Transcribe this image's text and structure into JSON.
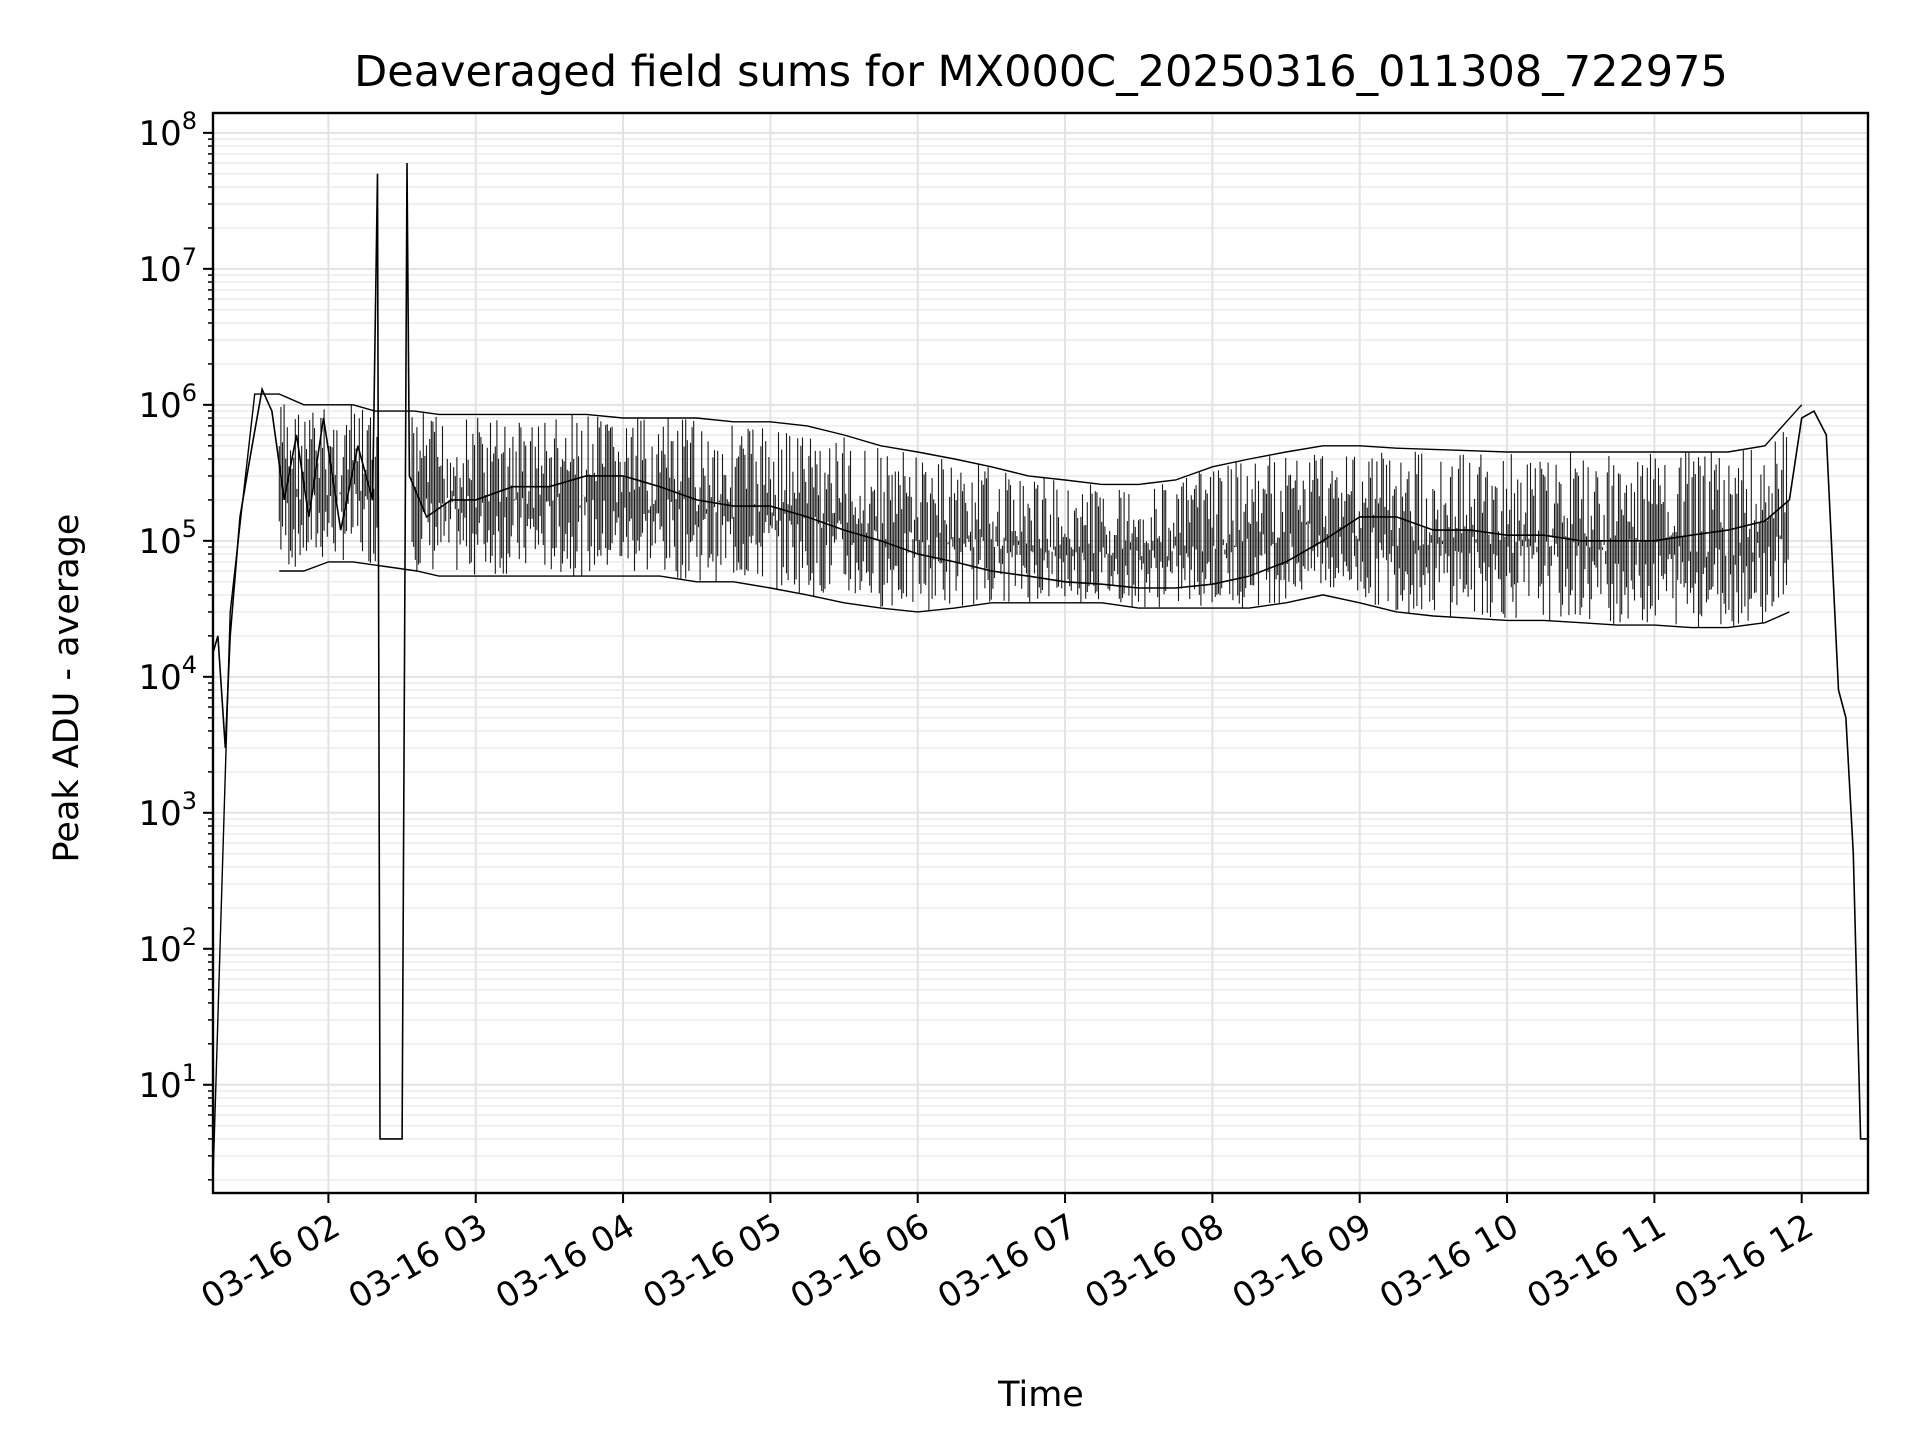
{
  "chart_data": {
    "type": "line",
    "title": "Deaveraged field sums for MX000C_20250316_011308_722975",
    "xlabel": "Time",
    "ylabel": "Peak ADU - average",
    "y_scale": "log",
    "ylim": [
      1.6,
      140000000
    ],
    "xlim": [
      "2025-03-16T01:13",
      "2025-03-16T12:27"
    ],
    "grid": true,
    "line_color": "#000000",
    "x_tick_labels": [
      "03-16 02",
      "03-16 03",
      "03-16 04",
      "03-16 05",
      "03-16 06",
      "03-16 07",
      "03-16 08",
      "03-16 09",
      "03-16 10",
      "03-16 11",
      "03-16 12"
    ],
    "y_tick_labels": [
      {
        "base": "10",
        "exp": "1"
      },
      {
        "base": "10",
        "exp": "2"
      },
      {
        "base": "10",
        "exp": "3"
      },
      {
        "base": "10",
        "exp": "4"
      },
      {
        "base": "10",
        "exp": "5"
      },
      {
        "base": "10",
        "exp": "6"
      },
      {
        "base": "10",
        "exp": "7"
      },
      {
        "base": "10",
        "exp": "8"
      }
    ],
    "series": [
      {
        "x": [
          "2025-03-16T01:13",
          "2025-03-16T01:15",
          "2025-03-16T01:18",
          "2025-03-16T01:20",
          "2025-03-16T01:24",
          "2025-03-16T01:28",
          "2025-03-16T01:33",
          "2025-03-16T01:37",
          "2025-03-16T01:42",
          "2025-03-16T01:47",
          "2025-03-16T01:52",
          "2025-03-16T01:58",
          "2025-03-16T02:05",
          "2025-03-16T02:12",
          "2025-03-16T02:18",
          "2025-03-16T02:20",
          "2025-03-16T02:21",
          "2025-03-16T02:22",
          "2025-03-16T02:25",
          "2025-03-16T02:30",
          "2025-03-16T02:32",
          "2025-03-16T02:33",
          "2025-03-16T02:40",
          "2025-03-16T02:50",
          "2025-03-16T03:00",
          "2025-03-16T03:15",
          "2025-03-16T03:30",
          "2025-03-16T03:45",
          "2025-03-16T04:00",
          "2025-03-16T04:15",
          "2025-03-16T04:30",
          "2025-03-16T04:45",
          "2025-03-16T05:00",
          "2025-03-16T05:15",
          "2025-03-16T05:30",
          "2025-03-16T05:45",
          "2025-03-16T06:00",
          "2025-03-16T06:15",
          "2025-03-16T06:30",
          "2025-03-16T06:45",
          "2025-03-16T07:00",
          "2025-03-16T07:15",
          "2025-03-16T07:30",
          "2025-03-16T07:45",
          "2025-03-16T08:00",
          "2025-03-16T08:15",
          "2025-03-16T08:30",
          "2025-03-16T08:45",
          "2025-03-16T09:00",
          "2025-03-16T09:15",
          "2025-03-16T09:30",
          "2025-03-16T09:45",
          "2025-03-16T10:00",
          "2025-03-16T10:15",
          "2025-03-16T10:30",
          "2025-03-16T10:45",
          "2025-03-16T11:00",
          "2025-03-16T11:15",
          "2025-03-16T11:30",
          "2025-03-16T11:45",
          "2025-03-16T11:55",
          "2025-03-16T12:00",
          "2025-03-16T12:05",
          "2025-03-16T12:10",
          "2025-03-16T12:15",
          "2025-03-16T12:18",
          "2025-03-16T12:21",
          "2025-03-16T12:24",
          "2025-03-16T12:27"
        ],
        "values": [
          15000,
          20000,
          3000,
          20000,
          150000,
          400000,
          1300000,
          900000,
          200000,
          600000,
          150000,
          800000,
          120000,
          500000,
          200000,
          50000000,
          4,
          4,
          4,
          4,
          60000000,
          300000,
          150000,
          200000,
          200000,
          250000,
          250000,
          300000,
          300000,
          250000,
          200000,
          180000,
          180000,
          150000,
          120000,
          100000,
          80000,
          70000,
          60000,
          55000,
          50000,
          48000,
          45000,
          45000,
          48000,
          55000,
          70000,
          100000,
          150000,
          150000,
          120000,
          120000,
          110000,
          110000,
          100000,
          100000,
          100000,
          110000,
          120000,
          140000,
          200000,
          800000,
          900000,
          600000,
          8000,
          5000,
          500,
          4,
          4
        ]
      },
      {
        "x": [
          "2025-03-16T01:13",
          "2025-03-16T01:20",
          "2025-03-16T01:30",
          "2025-03-16T01:40",
          "2025-03-16T01:50",
          "2025-03-16T02:00",
          "2025-03-16T02:10",
          "2025-03-16T02:19",
          "2025-03-16T02:35",
          "2025-03-16T02:45",
          "2025-03-16T03:00",
          "2025-03-16T03:15",
          "2025-03-16T03:30",
          "2025-03-16T03:45",
          "2025-03-16T04:00",
          "2025-03-16T04:15",
          "2025-03-16T04:30",
          "2025-03-16T04:45",
          "2025-03-16T05:00",
          "2025-03-16T05:15",
          "2025-03-16T05:30",
          "2025-03-16T05:45",
          "2025-03-16T06:00",
          "2025-03-16T06:15",
          "2025-03-16T06:30",
          "2025-03-16T06:45",
          "2025-03-16T07:00",
          "2025-03-16T07:15",
          "2025-03-16T07:30",
          "2025-03-16T07:45",
          "2025-03-16T08:00",
          "2025-03-16T08:15",
          "2025-03-16T08:30",
          "2025-03-16T08:45",
          "2025-03-16T09:00",
          "2025-03-16T09:15",
          "2025-03-16T09:30",
          "2025-03-16T09:45",
          "2025-03-16T10:00",
          "2025-03-16T10:15",
          "2025-03-16T10:30",
          "2025-03-16T10:45",
          "2025-03-16T11:00",
          "2025-03-16T11:15",
          "2025-03-16T11:30",
          "2025-03-16T11:45",
          "2025-03-16T12:00"
        ],
        "values": [
          2,
          30000,
          1200000,
          1200000,
          1000000,
          1000000,
          1000000,
          900000,
          900000,
          850000,
          850000,
          850000,
          850000,
          850000,
          800000,
          800000,
          800000,
          750000,
          750000,
          700000,
          600000,
          500000,
          450000,
          400000,
          350000,
          300000,
          280000,
          260000,
          260000,
          280000,
          350000,
          400000,
          450000,
          500000,
          500000,
          480000,
          470000,
          460000,
          450000,
          450000,
          450000,
          450000,
          450000,
          450000,
          450000,
          500000,
          1000000
        ]
      },
      {
        "x": [
          "2025-03-16T01:40",
          "2025-03-16T01:50",
          "2025-03-16T02:00",
          "2025-03-16T02:10",
          "2025-03-16T02:36",
          "2025-03-16T02:45",
          "2025-03-16T03:00",
          "2025-03-16T03:15",
          "2025-03-16T03:30",
          "2025-03-16T03:45",
          "2025-03-16T04:00",
          "2025-03-16T04:15",
          "2025-03-16T04:30",
          "2025-03-16T04:45",
          "2025-03-16T05:00",
          "2025-03-16T05:15",
          "2025-03-16T05:30",
          "2025-03-16T05:45",
          "2025-03-16T06:00",
          "2025-03-16T06:15",
          "2025-03-16T06:30",
          "2025-03-16T06:45",
          "2025-03-16T07:00",
          "2025-03-16T07:15",
          "2025-03-16T07:30",
          "2025-03-16T07:45",
          "2025-03-16T08:00",
          "2025-03-16T08:15",
          "2025-03-16T08:30",
          "2025-03-16T08:45",
          "2025-03-16T09:00",
          "2025-03-16T09:15",
          "2025-03-16T09:30",
          "2025-03-16T09:45",
          "2025-03-16T10:00",
          "2025-03-16T10:15",
          "2025-03-16T10:30",
          "2025-03-16T10:45",
          "2025-03-16T11:00",
          "2025-03-16T11:15",
          "2025-03-16T11:30",
          "2025-03-16T11:45",
          "2025-03-16T11:55"
        ],
        "values": [
          60000,
          60000,
          70000,
          70000,
          60000,
          55000,
          55000,
          55000,
          55000,
          55000,
          55000,
          55000,
          50000,
          50000,
          45000,
          40000,
          35000,
          32000,
          30000,
          32000,
          35000,
          35000,
          35000,
          35000,
          32000,
          32000,
          32000,
          32000,
          35000,
          40000,
          35000,
          30000,
          28000,
          27000,
          26000,
          26000,
          25000,
          24000,
          24000,
          23000,
          23000,
          25000,
          30000
        ]
      }
    ]
  }
}
